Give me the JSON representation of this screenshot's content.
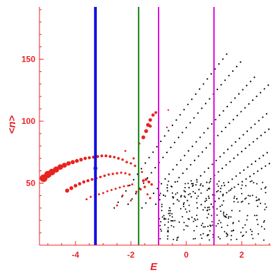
{
  "chart_data": {
    "type": "scatter",
    "title": "",
    "xlabel": "E",
    "ylabel": "<n>",
    "xlim": [
      -5.3,
      3.05
    ],
    "ylim": [
      0,
      195
    ],
    "x_ticks": [
      -4,
      -2,
      0,
      2
    ],
    "y_ticks": [
      50,
      100,
      150
    ],
    "x_tick_labels": [
      "-4",
      "-2",
      "0",
      "2"
    ],
    "y_tick_labels": [
      "50",
      "100",
      "150"
    ],
    "grid": false,
    "legend": "none",
    "axis_color": "#e8232a",
    "vertical_lines": [
      {
        "x": -3.28,
        "color": "#1010e0",
        "style": "thick"
      },
      {
        "x": -1.72,
        "color": "#108010",
        "style": "thin"
      },
      {
        "x": -1.0,
        "color": "#e010e0",
        "style": "thin"
      },
      {
        "x": 1.0,
        "color": "#e010e0",
        "style": "thin"
      }
    ],
    "series": [
      {
        "color": "#e8231e",
        "marker": "size-weighted",
        "points": [
          {
            "x": -5.15,
            "y": 54,
            "s": 5.5
          },
          {
            "x": -5.0,
            "y": 57,
            "s": 5.2
          },
          {
            "x": -4.85,
            "y": 59,
            "s": 4.8
          },
          {
            "x": -4.7,
            "y": 61,
            "s": 4.4
          },
          {
            "x": -4.55,
            "y": 63,
            "s": 4.0
          },
          {
            "x": -4.4,
            "y": 64.5,
            "s": 3.6
          },
          {
            "x": -4.25,
            "y": 66,
            "s": 3.2
          },
          {
            "x": -4.1,
            "y": 67,
            "s": 3.0
          },
          {
            "x": -3.95,
            "y": 68,
            "s": 2.8
          },
          {
            "x": -3.8,
            "y": 69,
            "s": 2.6
          },
          {
            "x": -3.65,
            "y": 70,
            "s": 2.4
          },
          {
            "x": -3.5,
            "y": 70.5,
            "s": 2.2
          },
          {
            "x": -3.35,
            "y": 71,
            "s": 2.2
          },
          {
            "x": -3.2,
            "y": 71.5,
            "s": 2.1
          },
          {
            "x": -3.05,
            "y": 72,
            "s": 2.0
          },
          {
            "x": -2.9,
            "y": 72,
            "s": 2.0
          },
          {
            "x": -2.75,
            "y": 71.5,
            "s": 2.0
          },
          {
            "x": -2.6,
            "y": 71,
            "s": 1.9
          },
          {
            "x": -2.45,
            "y": 70,
            "s": 1.9
          },
          {
            "x": -2.3,
            "y": 69,
            "s": 1.8
          },
          {
            "x": -2.15,
            "y": 67,
            "s": 1.8
          },
          {
            "x": -2.0,
            "y": 66,
            "s": 1.7
          },
          {
            "x": -1.85,
            "y": 64,
            "s": 1.7
          },
          {
            "x": -4.3,
            "y": 44,
            "s": 3.0
          },
          {
            "x": -4.15,
            "y": 46,
            "s": 2.8
          },
          {
            "x": -4.0,
            "y": 48,
            "s": 2.6
          },
          {
            "x": -3.85,
            "y": 49.5,
            "s": 2.4
          },
          {
            "x": -3.7,
            "y": 51,
            "s": 2.3
          },
          {
            "x": -3.55,
            "y": 52,
            "s": 2.2
          },
          {
            "x": -3.4,
            "y": 53,
            "s": 2.0
          },
          {
            "x": -3.25,
            "y": 54,
            "s": 1.9
          },
          {
            "x": -3.1,
            "y": 55,
            "s": 1.8
          },
          {
            "x": -2.95,
            "y": 56,
            "s": 1.8
          },
          {
            "x": -2.8,
            "y": 57,
            "s": 1.7
          },
          {
            "x": -2.65,
            "y": 57.5,
            "s": 1.7
          },
          {
            "x": -2.5,
            "y": 58,
            "s": 1.7
          },
          {
            "x": -2.35,
            "y": 58.5,
            "s": 1.6
          },
          {
            "x": -2.2,
            "y": 58,
            "s": 1.6
          },
          {
            "x": -2.05,
            "y": 57,
            "s": 1.6
          },
          {
            "x": -3.6,
            "y": 37,
            "s": 1.5
          },
          {
            "x": -3.45,
            "y": 39,
            "s": 1.5
          },
          {
            "x": -3.3,
            "y": 40,
            "s": 1.5
          },
          {
            "x": -3.15,
            "y": 41,
            "s": 1.5
          },
          {
            "x": -3.0,
            "y": 42,
            "s": 1.5
          },
          {
            "x": -2.85,
            "y": 43.5,
            "s": 1.5
          },
          {
            "x": -2.7,
            "y": 44.5,
            "s": 1.5
          },
          {
            "x": -2.55,
            "y": 45.5,
            "s": 1.5
          },
          {
            "x": -2.4,
            "y": 46.5,
            "s": 1.5
          },
          {
            "x": -2.25,
            "y": 47.5,
            "s": 1.5
          },
          {
            "x": -2.1,
            "y": 48,
            "s": 1.5
          },
          {
            "x": -1.95,
            "y": 49,
            "s": 1.5
          },
          {
            "x": -1.55,
            "y": 52,
            "s": 2.0
          },
          {
            "x": -1.45,
            "y": 53,
            "s": 2.0
          },
          {
            "x": -1.35,
            "y": 51,
            "s": 2.0
          },
          {
            "x": -1.25,
            "y": 49,
            "s": 1.8
          },
          {
            "x": -1.5,
            "y": 47,
            "s": 1.8
          },
          {
            "x": -1.65,
            "y": 45,
            "s": 1.6
          },
          {
            "x": -1.8,
            "y": 43,
            "s": 1.6
          },
          {
            "x": -1.4,
            "y": 41,
            "s": 1.5
          },
          {
            "x": -2.3,
            "y": 40,
            "s": 1.5
          },
          {
            "x": -2.0,
            "y": 36,
            "s": 1.4
          },
          {
            "x": -2.5,
            "y": 32,
            "s": 1.4
          },
          {
            "x": -1.3,
            "y": 38,
            "s": 1.5
          },
          {
            "x": -1.9,
            "y": 70,
            "s": 1.6
          },
          {
            "x": -2.2,
            "y": 76,
            "s": 1.4
          },
          {
            "x": -1.6,
            "y": 59,
            "s": 1.5
          },
          {
            "x": -1.55,
            "y": 87,
            "s": 2.8
          },
          {
            "x": -1.45,
            "y": 92,
            "s": 2.8
          },
          {
            "x": -1.38,
            "y": 97,
            "s": 2.8
          },
          {
            "x": -1.3,
            "y": 101,
            "s": 2.6
          },
          {
            "x": -1.2,
            "y": 105,
            "s": 2.4
          },
          {
            "x": -1.1,
            "y": 107,
            "s": 2.0
          },
          {
            "x": -1.3,
            "y": 96,
            "s": 2.2
          },
          {
            "x": -1.7,
            "y": 82,
            "s": 1.6
          },
          {
            "x": -0.7,
            "y": 95,
            "s": 1.2
          },
          {
            "x": -0.65,
            "y": 109,
            "s": 1.2
          }
        ]
      }
    ]
  }
}
